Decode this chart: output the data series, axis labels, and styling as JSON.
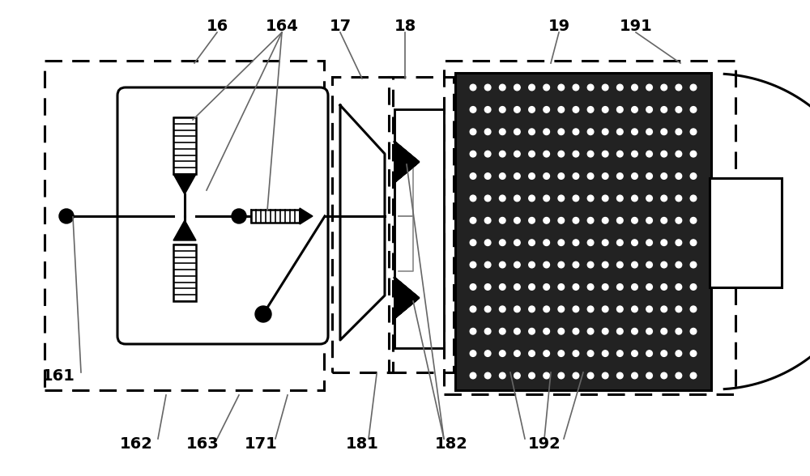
{
  "bg_color": "#ffffff",
  "line_color": "#000000",
  "dark_color": "#222222",
  "dot_color": "#ffffff",
  "ann_color": "#666666",
  "lw_thick": 2.2,
  "lw_med": 1.8,
  "lw_thin": 1.2,
  "lw_ann": 1.2,
  "label_fs": 14,
  "fig_w": 10.0,
  "fig_h": 5.88,
  "dpi": 100
}
